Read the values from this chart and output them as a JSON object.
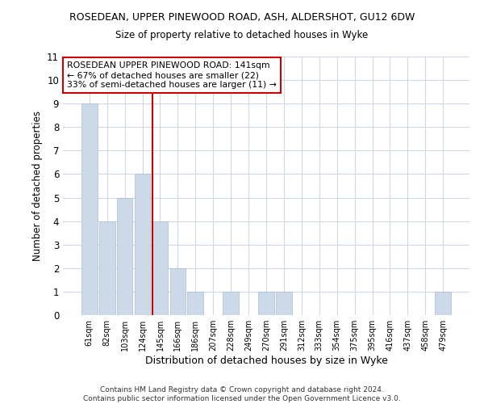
{
  "title1": "ROSEDEAN, UPPER PINEWOOD ROAD, ASH, ALDERSHOT, GU12 6DW",
  "title2": "Size of property relative to detached houses in Wyke",
  "xlabel": "Distribution of detached houses by size in Wyke",
  "ylabel": "Number of detached properties",
  "categories": [
    "61sqm",
    "82sqm",
    "103sqm",
    "124sqm",
    "145sqm",
    "166sqm",
    "186sqm",
    "207sqm",
    "228sqm",
    "249sqm",
    "270sqm",
    "291sqm",
    "312sqm",
    "333sqm",
    "354sqm",
    "375sqm",
    "395sqm",
    "416sqm",
    "437sqm",
    "458sqm",
    "479sqm"
  ],
  "values": [
    9,
    4,
    5,
    6,
    4,
    2,
    1,
    0,
    1,
    0,
    1,
    1,
    0,
    0,
    0,
    0,
    0,
    0,
    0,
    0,
    1
  ],
  "bar_color": "#ccd9e8",
  "bar_edgecolor": "#aabdd4",
  "vline_color": "#cc0000",
  "ylim": [
    0,
    11
  ],
  "yticks": [
    0,
    1,
    2,
    3,
    4,
    5,
    6,
    7,
    8,
    9,
    10,
    11
  ],
  "annotation_line1": "ROSEDEAN UPPER PINEWOOD ROAD: 141sqm",
  "annotation_line2": "← 67% of detached houses are smaller (22)",
  "annotation_line3": "33% of semi-detached houses are larger (11) →",
  "annotation_box_edgecolor": "#cc0000",
  "footer": "Contains HM Land Registry data © Crown copyright and database right 2024.\nContains public sector information licensed under the Open Government Licence v3.0.",
  "background_color": "#ffffff",
  "grid_color": "#d0d8e4"
}
